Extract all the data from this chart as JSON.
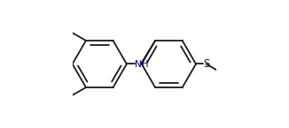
{
  "bg_color": "#ffffff",
  "line_color": "#1a1a1a",
  "nh_color": "#00006e",
  "s_color": "#1a1a1a",
  "lw": 1.3,
  "ring_r": 0.19,
  "figsize": [
    3.26,
    1.45
  ],
  "dpi": 100,
  "xlim": [
    0.0,
    1.0
  ],
  "ylim": [
    0.05,
    0.95
  ]
}
